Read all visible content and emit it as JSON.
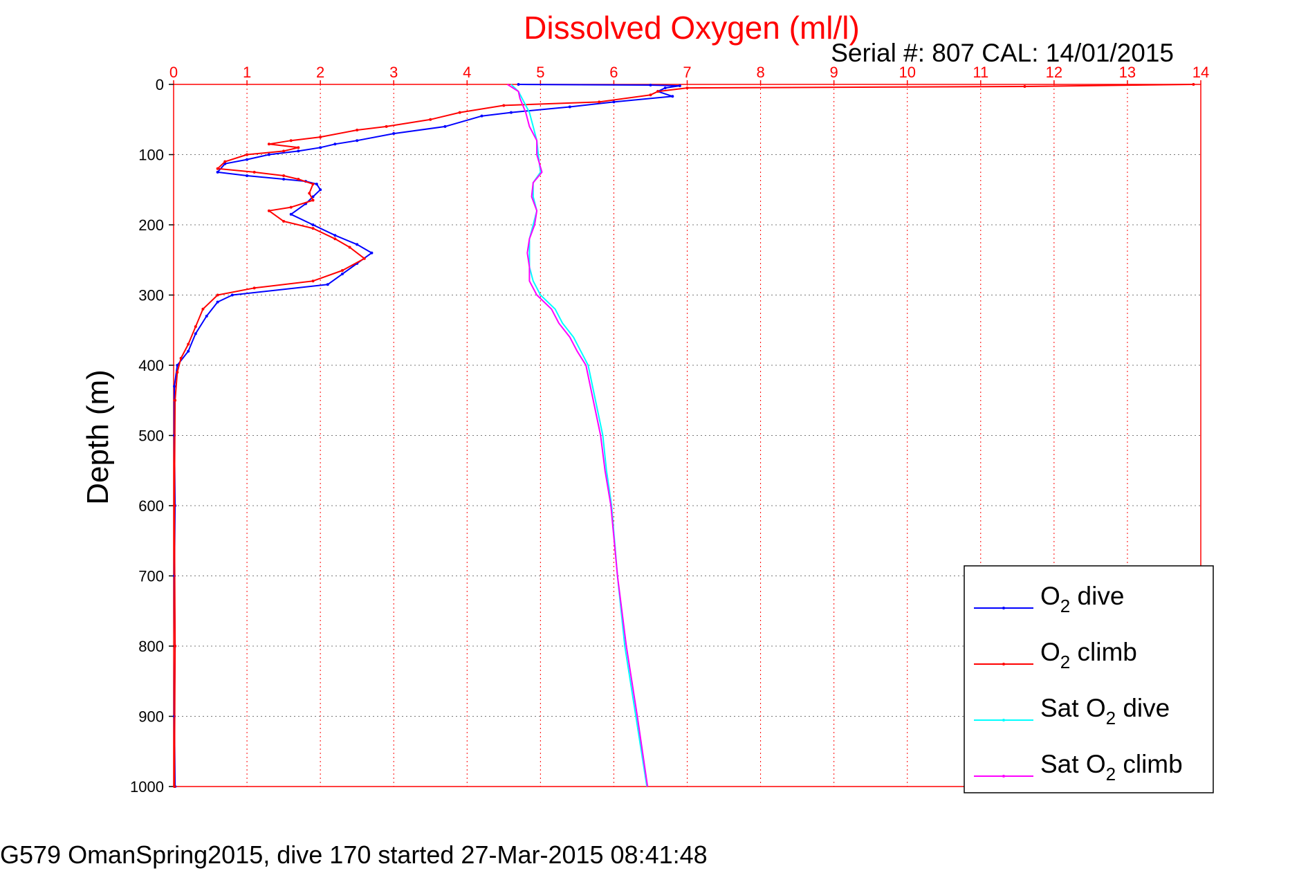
{
  "chart_data": {
    "type": "line",
    "title": "Dissolved Oxygen (ml/l)",
    "subtitle": "Serial #: 807  CAL: 14/01/2015",
    "ylabel": "Depth (m)",
    "footer": "G579 OmanSpring2015, dive 170 started 27-Mar-2015 08:41:48",
    "xlim": [
      0,
      14
    ],
    "ylim": [
      0,
      1000
    ],
    "y_reversed": true,
    "x_axis_position": "top",
    "x_ticks": [
      "0",
      "1",
      "2",
      "3",
      "4",
      "5",
      "6",
      "7",
      "8",
      "9",
      "10",
      "11",
      "12",
      "13",
      "14"
    ],
    "y_ticks": [
      "0",
      "100",
      "200",
      "300",
      "400",
      "500",
      "600",
      "700",
      "800",
      "900",
      "1000"
    ],
    "grid": true,
    "legend_position": "lower-right",
    "series": [
      {
        "name": "O₂ dive",
        "name_main": "O",
        "name_sub": "2",
        "name_after": " dive",
        "color": "#0000ff",
        "style": "line-dots",
        "points": [
          [
            4.7,
            0
          ],
          [
            6.5,
            1
          ],
          [
            6.9,
            2
          ],
          [
            6.7,
            5
          ],
          [
            6.6,
            10
          ],
          [
            6.8,
            17
          ],
          [
            6.0,
            25
          ],
          [
            5.4,
            32
          ],
          [
            4.6,
            40
          ],
          [
            4.2,
            45
          ],
          [
            3.7,
            60
          ],
          [
            3.0,
            70
          ],
          [
            2.5,
            80
          ],
          [
            2.2,
            85
          ],
          [
            2.0,
            90
          ],
          [
            1.7,
            95
          ],
          [
            1.3,
            100
          ],
          [
            1.0,
            107
          ],
          [
            0.7,
            113
          ],
          [
            0.6,
            125
          ],
          [
            1.0,
            130
          ],
          [
            1.5,
            135
          ],
          [
            1.8,
            138
          ],
          [
            1.95,
            142
          ],
          [
            2.0,
            150
          ],
          [
            1.9,
            160
          ],
          [
            1.8,
            170
          ],
          [
            1.6,
            185
          ],
          [
            1.9,
            200
          ],
          [
            2.2,
            215
          ],
          [
            2.5,
            228
          ],
          [
            2.7,
            240
          ],
          [
            2.5,
            255
          ],
          [
            2.3,
            270
          ],
          [
            2.1,
            285
          ],
          [
            0.8,
            300
          ],
          [
            0.6,
            310
          ],
          [
            0.45,
            330
          ],
          [
            0.3,
            355
          ],
          [
            0.2,
            380
          ],
          [
            0.05,
            400
          ],
          [
            0.01,
            430
          ],
          [
            0.01,
            500
          ],
          [
            0.02,
            600
          ],
          [
            0.01,
            700
          ],
          [
            0.02,
            800
          ],
          [
            0.01,
            900
          ],
          [
            0.02,
            1000
          ]
        ]
      },
      {
        "name": "O₂ climb",
        "name_main": "O",
        "name_sub": "2",
        "name_after": " climb",
        "color": "#ff0000",
        "style": "line-dots",
        "points": [
          [
            13.9,
            0
          ],
          [
            11.6,
            3
          ],
          [
            7.0,
            5
          ],
          [
            6.6,
            10
          ],
          [
            6.5,
            15
          ],
          [
            5.8,
            25
          ],
          [
            4.5,
            30
          ],
          [
            3.9,
            40
          ],
          [
            3.5,
            50
          ],
          [
            2.9,
            60
          ],
          [
            2.5,
            65
          ],
          [
            2.0,
            75
          ],
          [
            1.6,
            80
          ],
          [
            1.3,
            85
          ],
          [
            1.7,
            90
          ],
          [
            1.5,
            95
          ],
          [
            1.0,
            100
          ],
          [
            0.7,
            110
          ],
          [
            0.6,
            120
          ],
          [
            1.1,
            125
          ],
          [
            1.5,
            130
          ],
          [
            1.7,
            135
          ],
          [
            1.9,
            142
          ],
          [
            1.85,
            155
          ],
          [
            1.9,
            165
          ],
          [
            1.6,
            175
          ],
          [
            1.3,
            180
          ],
          [
            1.5,
            195
          ],
          [
            1.9,
            205
          ],
          [
            2.2,
            220
          ],
          [
            2.4,
            232
          ],
          [
            2.6,
            248
          ],
          [
            2.3,
            265
          ],
          [
            1.9,
            280
          ],
          [
            1.1,
            290
          ],
          [
            0.6,
            300
          ],
          [
            0.4,
            320
          ],
          [
            0.3,
            345
          ],
          [
            0.2,
            370
          ],
          [
            0.1,
            390
          ],
          [
            0.05,
            410
          ],
          [
            0.02,
            450
          ],
          [
            0.01,
            600
          ],
          [
            0.02,
            800
          ],
          [
            0.01,
            1000
          ]
        ]
      },
      {
        "name": "Sat O₂ dive",
        "name_main": "Sat O",
        "name_sub": "2",
        "name_after": " dive",
        "color": "#00ffff",
        "style": "line",
        "points": [
          [
            4.6,
            0
          ],
          [
            4.7,
            10
          ],
          [
            4.75,
            20
          ],
          [
            4.85,
            40
          ],
          [
            4.9,
            60
          ],
          [
            4.95,
            80
          ],
          [
            4.97,
            100
          ],
          [
            5.0,
            125
          ],
          [
            4.9,
            140
          ],
          [
            4.9,
            160
          ],
          [
            4.95,
            180
          ],
          [
            4.9,
            200
          ],
          [
            4.85,
            220
          ],
          [
            4.85,
            240
          ],
          [
            4.85,
            260
          ],
          [
            4.9,
            280
          ],
          [
            5.0,
            300
          ],
          [
            5.2,
            320
          ],
          [
            5.3,
            340
          ],
          [
            5.45,
            360
          ],
          [
            5.55,
            380
          ],
          [
            5.65,
            400
          ],
          [
            5.75,
            450
          ],
          [
            5.85,
            500
          ],
          [
            5.9,
            550
          ],
          [
            5.97,
            600
          ],
          [
            6.05,
            700
          ],
          [
            6.15,
            800
          ],
          [
            6.3,
            900
          ],
          [
            6.45,
            1000
          ]
        ]
      },
      {
        "name": "Sat O₂ climb",
        "name_main": "Sat O",
        "name_sub": "2",
        "name_after": " climb",
        "color": "#ff00ff",
        "style": "line",
        "points": [
          [
            4.55,
            0
          ],
          [
            4.7,
            10
          ],
          [
            4.72,
            20
          ],
          [
            4.8,
            40
          ],
          [
            4.85,
            60
          ],
          [
            4.95,
            80
          ],
          [
            4.95,
            100
          ],
          [
            5.02,
            125
          ],
          [
            4.9,
            140
          ],
          [
            4.88,
            160
          ],
          [
            4.95,
            180
          ],
          [
            4.92,
            200
          ],
          [
            4.85,
            220
          ],
          [
            4.82,
            240
          ],
          [
            4.85,
            260
          ],
          [
            4.85,
            280
          ],
          [
            4.95,
            300
          ],
          [
            5.15,
            320
          ],
          [
            5.25,
            340
          ],
          [
            5.4,
            360
          ],
          [
            5.5,
            380
          ],
          [
            5.62,
            400
          ],
          [
            5.72,
            450
          ],
          [
            5.82,
            500
          ],
          [
            5.88,
            550
          ],
          [
            5.96,
            600
          ],
          [
            6.05,
            700
          ],
          [
            6.17,
            800
          ],
          [
            6.32,
            900
          ],
          [
            6.46,
            1000
          ]
        ]
      }
    ]
  }
}
